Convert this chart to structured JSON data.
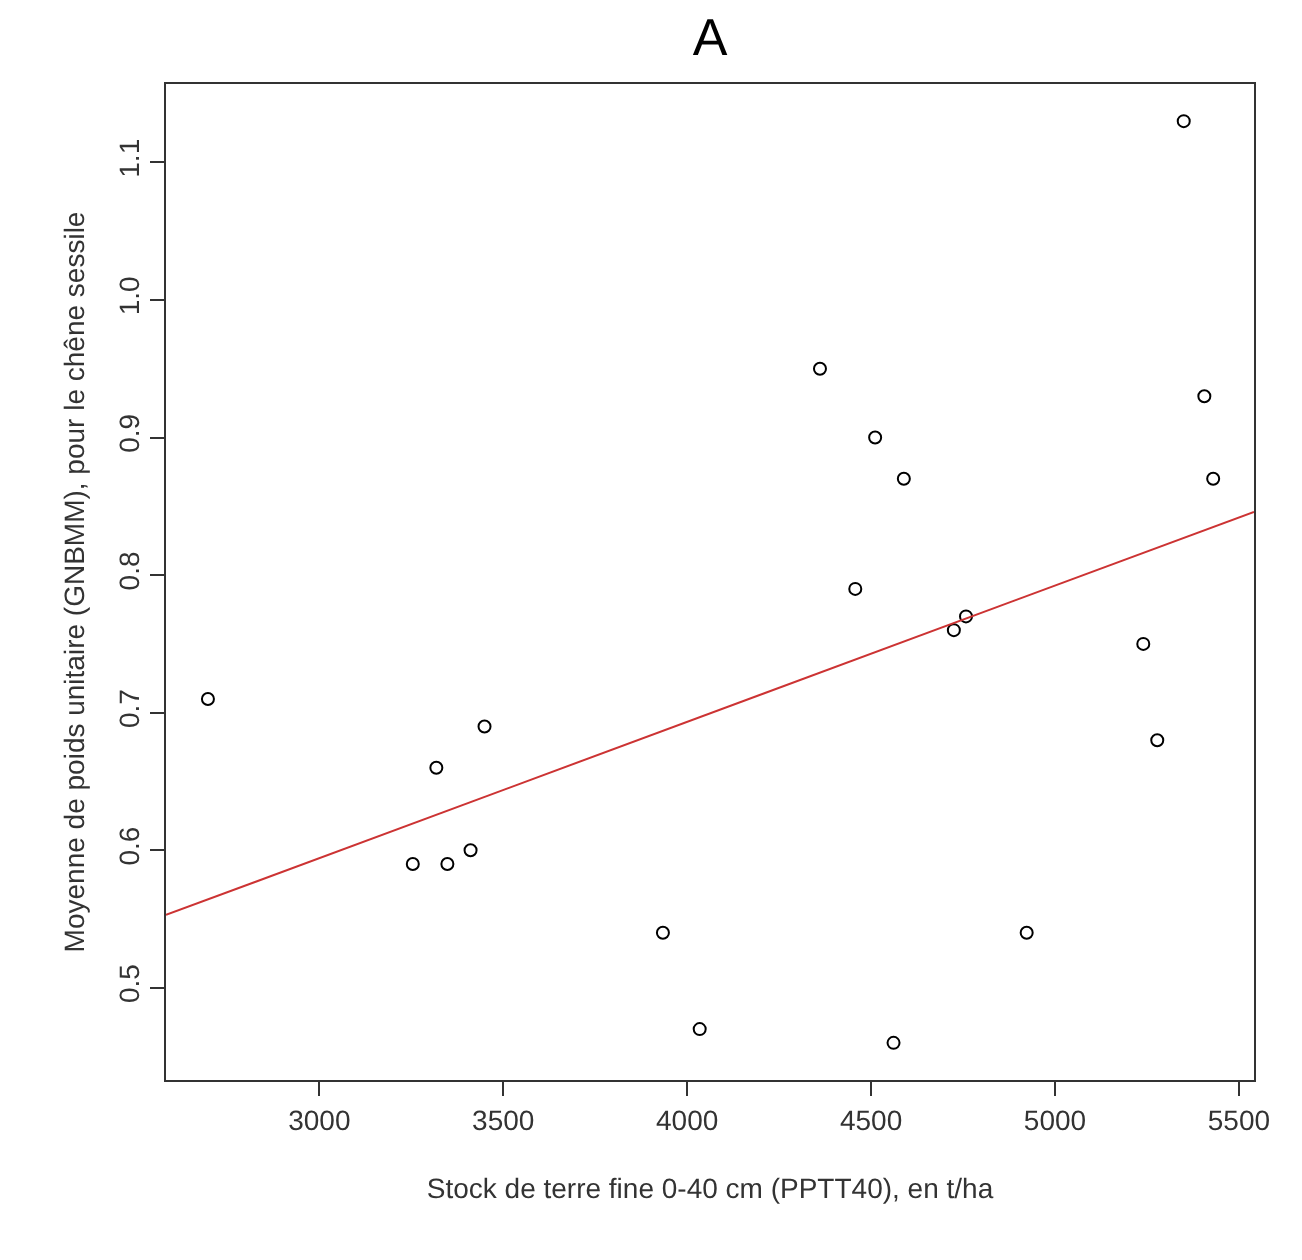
{
  "chart_data": {
    "type": "scatter",
    "title": "A",
    "xlabel": "Stock de terre fine 0-40 cm (PPTT40), en t/ha",
    "ylabel": "Moyenne de poids unitaire (GNBMM), pour le chêne sessile",
    "xlim": [
      2583,
      5541
    ],
    "ylim": [
      0.433,
      1.157
    ],
    "xticks": [
      3000,
      3500,
      4000,
      4500,
      5000,
      5500
    ],
    "yticks": [
      {
        "value": 0.5,
        "label": "0.5"
      },
      {
        "value": 0.6,
        "label": "0.6"
      },
      {
        "value": 0.7,
        "label": "0.7"
      },
      {
        "value": 0.8,
        "label": "0.8"
      },
      {
        "value": 0.9,
        "label": "0.9"
      },
      {
        "value": 1.0,
        "label": "1.0"
      },
      {
        "value": 1.1,
        "label": "1.1"
      }
    ],
    "grid": false,
    "series": [
      {
        "marker": "circle",
        "color": "#000000",
        "x": [
          2697,
          3254,
          3318,
          3348,
          3411,
          3449,
          3934,
          4034,
          4361,
          4457,
          4511,
          4561,
          4589,
          4725,
          4758,
          4923,
          5240,
          5278,
          5350,
          5406,
          5430
        ],
        "values": [
          0.71,
          0.59,
          0.66,
          0.59,
          0.6,
          0.69,
          0.54,
          0.47,
          0.95,
          0.79,
          0.9,
          0.46,
          0.87,
          0.76,
          0.77,
          0.54,
          0.75,
          0.68,
          1.13,
          0.93,
          0.87
        ]
      },
      {
        "type": "line",
        "color": "#cc3333",
        "x": [
          2583,
          5541
        ],
        "values": [
          0.553,
          0.846
        ]
      }
    ]
  }
}
